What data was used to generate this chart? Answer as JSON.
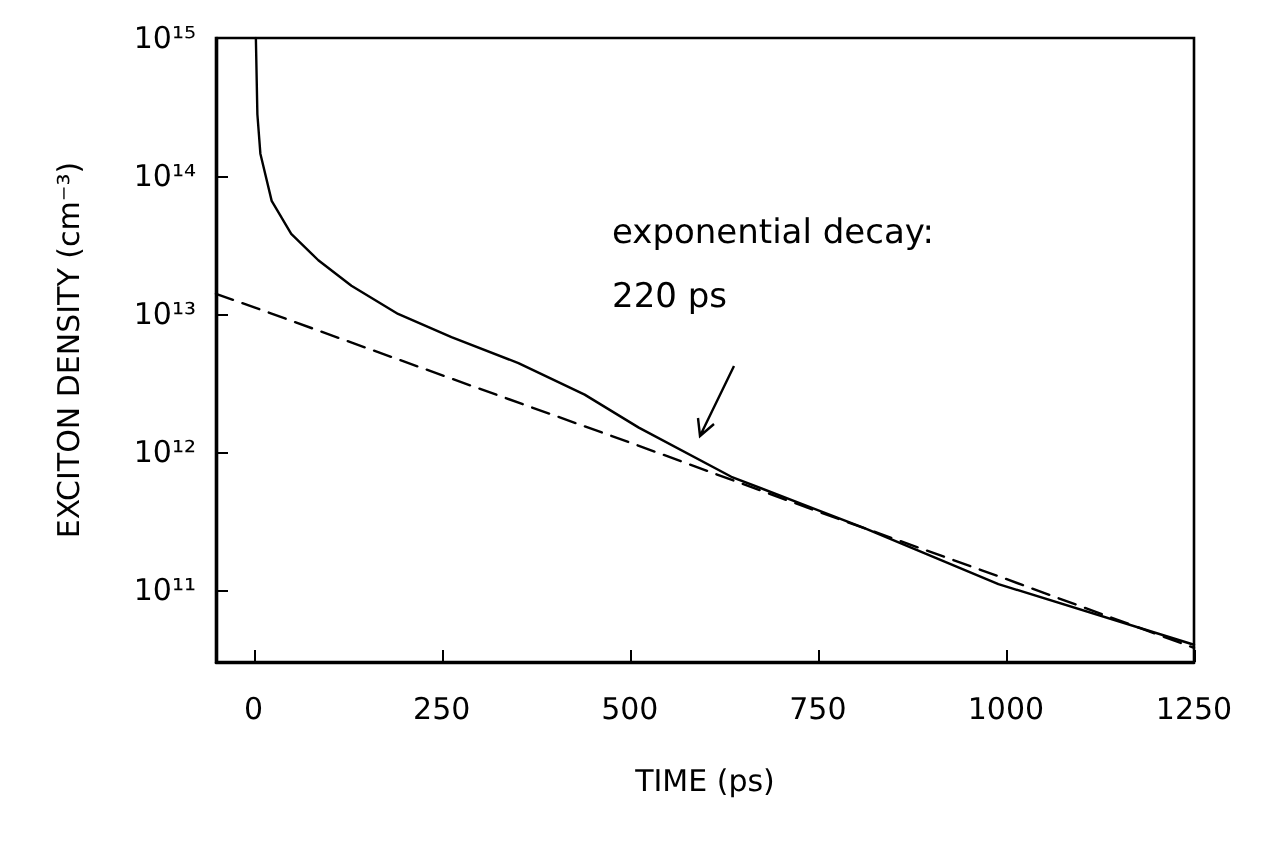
{
  "chart_data": {
    "type": "line",
    "xlabel": "TIME (ps)",
    "ylabel": "EXCITON DENSITY (cm⁻³)",
    "log": "y",
    "xlim": [
      -50,
      1250
    ],
    "xticks": [
      0,
      250,
      500,
      750,
      1000,
      1250
    ],
    "ylim": [
      30000000000.0,
      1000000000000000.0
    ],
    "yticks": [
      {
        "value": 100000000000.0,
        "label": "10¹¹"
      },
      {
        "value": 1000000000000.0,
        "label": "10¹²"
      },
      {
        "value": 10000000000000.0,
        "label": "10¹³"
      },
      {
        "value": 100000000000000.0,
        "label": "10¹⁴"
      },
      {
        "value": 1000000000000000.0,
        "label": "10¹⁵"
      }
    ],
    "grid": false,
    "marker": "none",
    "series": [
      {
        "color": "#000000",
        "line_style": "solid",
        "x": [
          3,
          5,
          9,
          24,
          50,
          86,
          130,
          192,
          263,
          352,
          440,
          512,
          635,
          812,
          990,
          1250
        ],
        "values": [
          1000000000000000.0,
          280000000000000.0,
          145000000000000.0,
          66000000000000.0,
          38000000000000.0,
          24500000000000.0,
          16000000000000.0,
          10000000000000.0,
          6800000000000.0,
          4400000000000.0,
          2600000000000.0,
          1500000000000.0,
          660000000000.0,
          280000000000.0,
          110000000000.0,
          40000000000.0
        ]
      },
      {
        "color": "#000000",
        "line_style": "dashed",
        "x": [
          -50,
          0,
          250,
          500,
          750,
          1000,
          1250
        ],
        "values": [
          14000000000000.0,
          11200000000000.0,
          3600000000000.0,
          1170000000000.0,
          370000000000.0,
          120000000000.0,
          38000000000.0
        ]
      }
    ],
    "annotations": [
      "exponential decay:",
      "220 ps"
    ]
  }
}
